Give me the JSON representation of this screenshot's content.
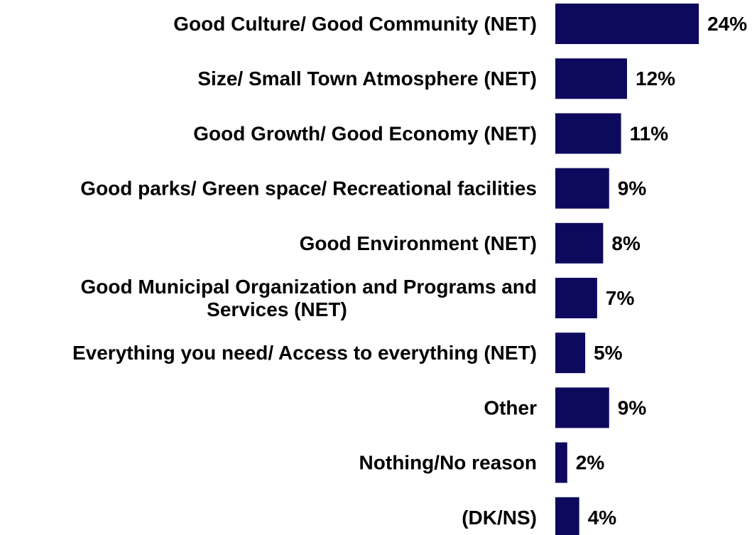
{
  "chart_data": {
    "type": "bar",
    "orientation": "horizontal",
    "categories": [
      "Good Culture/ Good Community (NET)",
      "Size/ Small Town Atmosphere (NET)",
      "Good Growth/ Good Economy (NET)",
      "Good parks/ Green space/ Recreational facilities",
      "Good Environment (NET)",
      "Good Municipal Organization and Programs and Services (NET)",
      "Everything you need/ Access to everything (NET)",
      "Other",
      "Nothing/No reason",
      "(DK/NS)"
    ],
    "category_lines": [
      [
        "Good Culture/ Good Community (NET)"
      ],
      [
        "Size/ Small Town Atmosphere (NET)"
      ],
      [
        "Good Growth/ Good Economy (NET)"
      ],
      [
        "Good parks/ Green space/ Recreational facilities"
      ],
      [
        "Good Environment (NET)"
      ],
      [
        "Good Municipal Organization and Programs and",
        "Services (NET)"
      ],
      [
        "Everything you need/ Access to everything (NET)"
      ],
      [
        "Other"
      ],
      [
        "Nothing/No reason"
      ],
      [
        "(DK/NS)"
      ]
    ],
    "values": [
      24,
      12,
      11,
      9,
      8,
      7,
      5,
      9,
      2,
      4
    ],
    "value_labels": [
      "24%",
      "12%",
      "11%",
      "9%",
      "8%",
      "7%",
      "5%",
      "9%",
      "2%",
      "4%"
    ],
    "unit": "%",
    "title": "",
    "xlabel": "",
    "ylabel": "",
    "grid": false,
    "legend": "none",
    "bar_color": "#0d0a5e"
  }
}
